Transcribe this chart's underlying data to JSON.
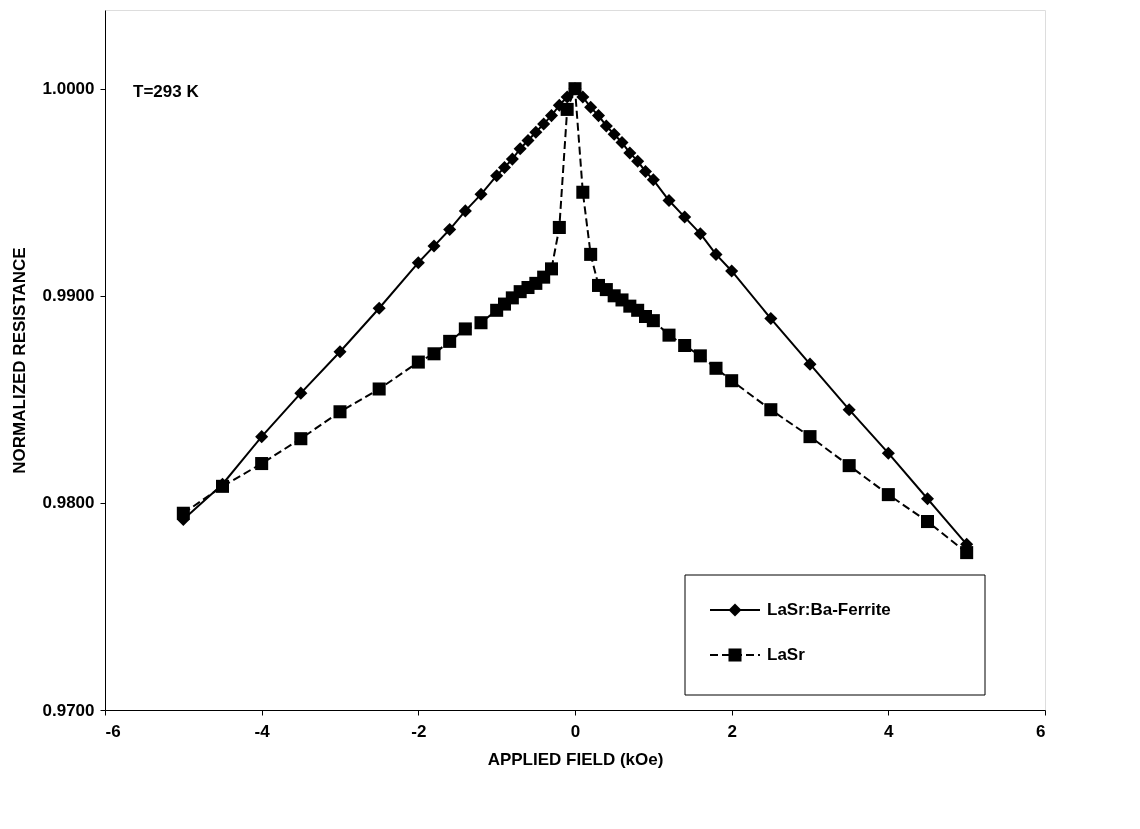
{
  "chart_data": {
    "type": "line",
    "xlabel": "APPLIED FIELD (kOe)",
    "ylabel": "NORMALIZED RESISTANCE",
    "annotations": [
      "T=293 K"
    ],
    "xlim": [
      -6,
      6
    ],
    "xticks": [
      -6,
      -4,
      -2,
      0,
      2,
      4,
      6
    ],
    "ylim": [
      0.97,
      1.0038
    ],
    "yticks": [
      {
        "value": 0.97,
        "label": "0.9700"
      },
      {
        "value": 0.98,
        "label": "0.9800"
      },
      {
        "value": 0.99,
        "label": "0.9900"
      },
      {
        "value": 1.0,
        "label": "1.0000"
      }
    ],
    "legend": "bottom right",
    "series": [
      {
        "name": "LaSr:Ba-Ferrite",
        "color": "#000000",
        "marker": "diamond",
        "line_style": "solid",
        "x": [
          -5,
          -4.5,
          -4,
          -3.5,
          -3,
          -2.5,
          -2,
          -1.8,
          -1.6,
          -1.4,
          -1.2,
          -1.0,
          -0.9,
          -0.8,
          -0.7,
          -0.6,
          -0.5,
          -0.4,
          -0.3,
          -0.2,
          -0.1,
          0,
          0.1,
          0.2,
          0.3,
          0.4,
          0.5,
          0.6,
          0.7,
          0.8,
          0.9,
          1.0,
          1.2,
          1.4,
          1.6,
          1.8,
          2.0,
          2.5,
          3,
          3.5,
          4,
          4.5,
          5
        ],
        "values": [
          0.9792,
          0.9809,
          0.9832,
          0.9853,
          0.9873,
          0.9894,
          0.9916,
          0.9924,
          0.9932,
          0.9941,
          0.9949,
          0.9958,
          0.9962,
          0.9966,
          0.9971,
          0.9975,
          0.9979,
          0.9983,
          0.9987,
          0.9992,
          0.9996,
          1.0,
          0.9996,
          0.9991,
          0.9987,
          0.9982,
          0.9978,
          0.9974,
          0.9969,
          0.9965,
          0.996,
          0.9956,
          0.9946,
          0.9938,
          0.993,
          0.992,
          0.9912,
          0.9889,
          0.9867,
          0.9845,
          0.9824,
          0.9802,
          0.978
        ]
      },
      {
        "name": "LaSr",
        "color": "#000000",
        "marker": "square",
        "line_style": "dashed",
        "x": [
          -5,
          -4.5,
          -4,
          -3.5,
          -3,
          -2.5,
          -2,
          -1.8,
          -1.6,
          -1.4,
          -1.2,
          -1.0,
          -0.9,
          -0.8,
          -0.7,
          -0.6,
          -0.5,
          -0.4,
          -0.3,
          -0.2,
          -0.1,
          0,
          0.1,
          0.2,
          0.3,
          0.4,
          0.5,
          0.6,
          0.7,
          0.8,
          0.9,
          1.0,
          1.2,
          1.4,
          1.6,
          1.8,
          2.0,
          2.5,
          3,
          3.5,
          4,
          4.5,
          5
        ],
        "values": [
          0.9795,
          0.9808,
          0.9819,
          0.9831,
          0.9844,
          0.9855,
          0.9868,
          0.9872,
          0.9878,
          0.9884,
          0.9887,
          0.9893,
          0.9896,
          0.9899,
          0.9902,
          0.9904,
          0.9906,
          0.9909,
          0.9913,
          0.9933,
          0.999,
          1.0,
          0.995,
          0.992,
          0.9905,
          0.9903,
          0.99,
          0.9898,
          0.9895,
          0.9893,
          0.989,
          0.9888,
          0.9881,
          0.9876,
          0.9871,
          0.9865,
          0.9859,
          0.9845,
          0.9832,
          0.9818,
          0.9804,
          0.9791,
          0.9776
        ]
      }
    ]
  }
}
